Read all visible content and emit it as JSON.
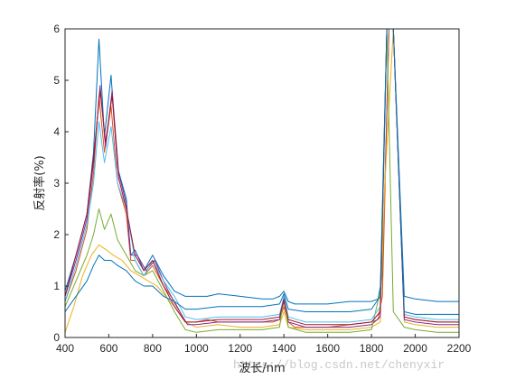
{
  "chart_data": {
    "type": "line",
    "title": "",
    "xlabel": "波长/nm",
    "ylabel": "反射率(%)",
    "xlim": [
      400,
      2200
    ],
    "ylim": [
      0,
      6
    ],
    "xticks": [
      400,
      600,
      800,
      1000,
      1200,
      1400,
      1600,
      1800,
      2000,
      2200
    ],
    "yticks": [
      0,
      1,
      2,
      3,
      4,
      5,
      6
    ],
    "grid": false,
    "legend": "none",
    "watermark": "https://blog.csdn.net/chenyxir",
    "series": [
      {
        "color": "#0072BD",
        "x": [
          400,
          450,
          500,
          530,
          555,
          580,
          610,
          640,
          680,
          700,
          720,
          760,
          800,
          850,
          900,
          950,
          1000,
          1050,
          1100,
          1200,
          1300,
          1350,
          1380,
          1400,
          1420,
          1450,
          1500,
          1600,
          1700,
          1800,
          1830,
          1850,
          1880,
          1900,
          1950,
          2000,
          2100,
          2200
        ],
        "y": [
          0.9,
          1.6,
          2.4,
          3.6,
          5.8,
          3.9,
          5.1,
          3.3,
          2.7,
          1.6,
          1.7,
          1.3,
          1.6,
          1.2,
          0.9,
          0.8,
          0.8,
          0.8,
          0.85,
          0.8,
          0.75,
          0.75,
          0.8,
          0.9,
          0.7,
          0.65,
          0.65,
          0.65,
          0.7,
          0.7,
          0.75,
          1.2,
          6.0,
          6.0,
          0.8,
          0.75,
          0.7,
          0.7
        ]
      },
      {
        "color": "#D95319",
        "x": [
          400,
          450,
          500,
          530,
          555,
          580,
          610,
          640,
          680,
          700,
          720,
          760,
          800,
          850,
          900,
          950,
          1000,
          1050,
          1100,
          1200,
          1300,
          1350,
          1380,
          1400,
          1420,
          1450,
          1500,
          1600,
          1700,
          1800,
          1830,
          1850,
          1880,
          1900,
          1950,
          2000,
          2100,
          2200
        ],
        "y": [
          0.7,
          1.3,
          2.1,
          3.2,
          4.7,
          3.6,
          4.5,
          3.0,
          2.4,
          1.5,
          1.5,
          1.2,
          1.4,
          1.0,
          0.7,
          0.3,
          0.3,
          0.35,
          0.3,
          0.3,
          0.3,
          0.3,
          0.35,
          0.6,
          0.3,
          0.2,
          0.2,
          0.2,
          0.25,
          0.3,
          0.35,
          0.8,
          6.0,
          6.0,
          0.4,
          0.35,
          0.3,
          0.3
        ]
      },
      {
        "color": "#EDB120",
        "x": [
          400,
          440,
          480,
          520,
          555,
          590,
          620,
          660,
          700,
          740,
          780,
          820,
          860,
          900,
          950,
          1000,
          1100,
          1200,
          1300,
          1380,
          1400,
          1420,
          1500,
          1600,
          1700,
          1800,
          1840,
          1860,
          1900,
          1950,
          2000,
          2100,
          2200
        ],
        "y": [
          0.1,
          0.6,
          1.2,
          1.6,
          1.8,
          1.7,
          1.6,
          1.5,
          1.3,
          1.2,
          1.1,
          1.0,
          0.8,
          0.6,
          0.3,
          0.2,
          0.25,
          0.2,
          0.2,
          0.25,
          0.5,
          0.2,
          0.15,
          0.15,
          0.15,
          0.2,
          0.3,
          2.9,
          6.0,
          0.3,
          0.25,
          0.2,
          0.2
        ]
      },
      {
        "color": "#7E2F8E",
        "x": [
          400,
          450,
          500,
          530,
          560,
          585,
          615,
          645,
          680,
          700,
          730,
          770,
          810,
          860,
          910,
          960,
          1000,
          1100,
          1200,
          1300,
          1380,
          1400,
          1420,
          1500,
          1600,
          1700,
          1800,
          1840,
          1870,
          1900,
          1950,
          2000,
          2100,
          2200
        ],
        "y": [
          0.8,
          1.5,
          2.3,
          3.4,
          4.9,
          3.7,
          4.8,
          3.2,
          2.6,
          1.6,
          1.6,
          1.3,
          1.5,
          1.0,
          0.6,
          0.25,
          0.25,
          0.3,
          0.3,
          0.3,
          0.35,
          0.7,
          0.3,
          0.2,
          0.2,
          0.2,
          0.25,
          0.4,
          6.0,
          6.0,
          0.35,
          0.3,
          0.25,
          0.25
        ]
      },
      {
        "color": "#77AC30",
        "x": [
          400,
          450,
          500,
          530,
          555,
          580,
          610,
          640,
          680,
          720,
          760,
          800,
          850,
          900,
          950,
          1000,
          1100,
          1200,
          1300,
          1380,
          1400,
          1420,
          1500,
          1600,
          1700,
          1800,
          1840,
          1870,
          1900,
          1950,
          2000,
          2100,
          2200
        ],
        "y": [
          0.6,
          1.1,
          1.6,
          2.0,
          2.5,
          2.1,
          2.4,
          1.9,
          1.6,
          1.3,
          1.2,
          1.3,
          0.9,
          0.5,
          0.15,
          0.1,
          0.15,
          0.15,
          0.15,
          0.2,
          0.8,
          0.2,
          0.1,
          0.1,
          0.1,
          0.15,
          0.9,
          6.0,
          0.5,
          0.2,
          0.15,
          0.1,
          0.1
        ]
      },
      {
        "color": "#4DBEEE",
        "x": [
          400,
          450,
          500,
          530,
          555,
          580,
          610,
          640,
          680,
          720,
          760,
          800,
          850,
          900,
          950,
          1000,
          1100,
          1200,
          1300,
          1380,
          1400,
          1420,
          1500,
          1600,
          1700,
          1800,
          1840,
          1870,
          1900,
          1950,
          2000,
          2100,
          2200
        ],
        "y": [
          0.7,
          1.4,
          2.2,
          3.0,
          4.2,
          3.4,
          4.1,
          3.0,
          2.5,
          1.5,
          1.2,
          1.5,
          1.1,
          0.8,
          0.4,
          0.35,
          0.4,
          0.4,
          0.4,
          0.45,
          0.8,
          0.4,
          0.3,
          0.3,
          0.3,
          0.35,
          0.6,
          6.0,
          6.0,
          0.45,
          0.4,
          0.35,
          0.35
        ]
      },
      {
        "color": "#A2142F",
        "x": [
          400,
          450,
          500,
          530,
          560,
          585,
          615,
          645,
          680,
          720,
          760,
          800,
          850,
          900,
          950,
          1000,
          1100,
          1200,
          1300,
          1380,
          1400,
          1420,
          1500,
          1600,
          1700,
          1800,
          1840,
          1870,
          1900,
          1950,
          2000,
          2100,
          2200
        ],
        "y": [
          0.8,
          1.6,
          2.4,
          3.5,
          4.8,
          3.8,
          4.7,
          3.1,
          2.5,
          1.6,
          1.3,
          1.5,
          1.0,
          0.6,
          0.3,
          0.3,
          0.35,
          0.35,
          0.35,
          0.4,
          0.75,
          0.35,
          0.25,
          0.25,
          0.25,
          0.3,
          0.5,
          6.0,
          6.0,
          0.4,
          0.35,
          0.3,
          0.3
        ]
      },
      {
        "color": "#0072BD",
        "x": [
          400,
          450,
          500,
          530,
          555,
          580,
          610,
          640,
          680,
          720,
          760,
          800,
          850,
          900,
          950,
          1000,
          1100,
          1200,
          1300,
          1380,
          1400,
          1420,
          1500,
          1600,
          1700,
          1800,
          1840,
          1870,
          1900,
          1950,
          2000,
          2100,
          2200
        ],
        "y": [
          0.5,
          0.8,
          1.1,
          1.4,
          1.6,
          1.5,
          1.5,
          1.4,
          1.3,
          1.1,
          1.0,
          1.0,
          0.8,
          0.7,
          0.55,
          0.55,
          0.6,
          0.6,
          0.6,
          0.65,
          0.85,
          0.55,
          0.5,
          0.5,
          0.5,
          0.55,
          0.8,
          6.0,
          6.0,
          0.5,
          0.45,
          0.45,
          0.45
        ]
      }
    ]
  }
}
